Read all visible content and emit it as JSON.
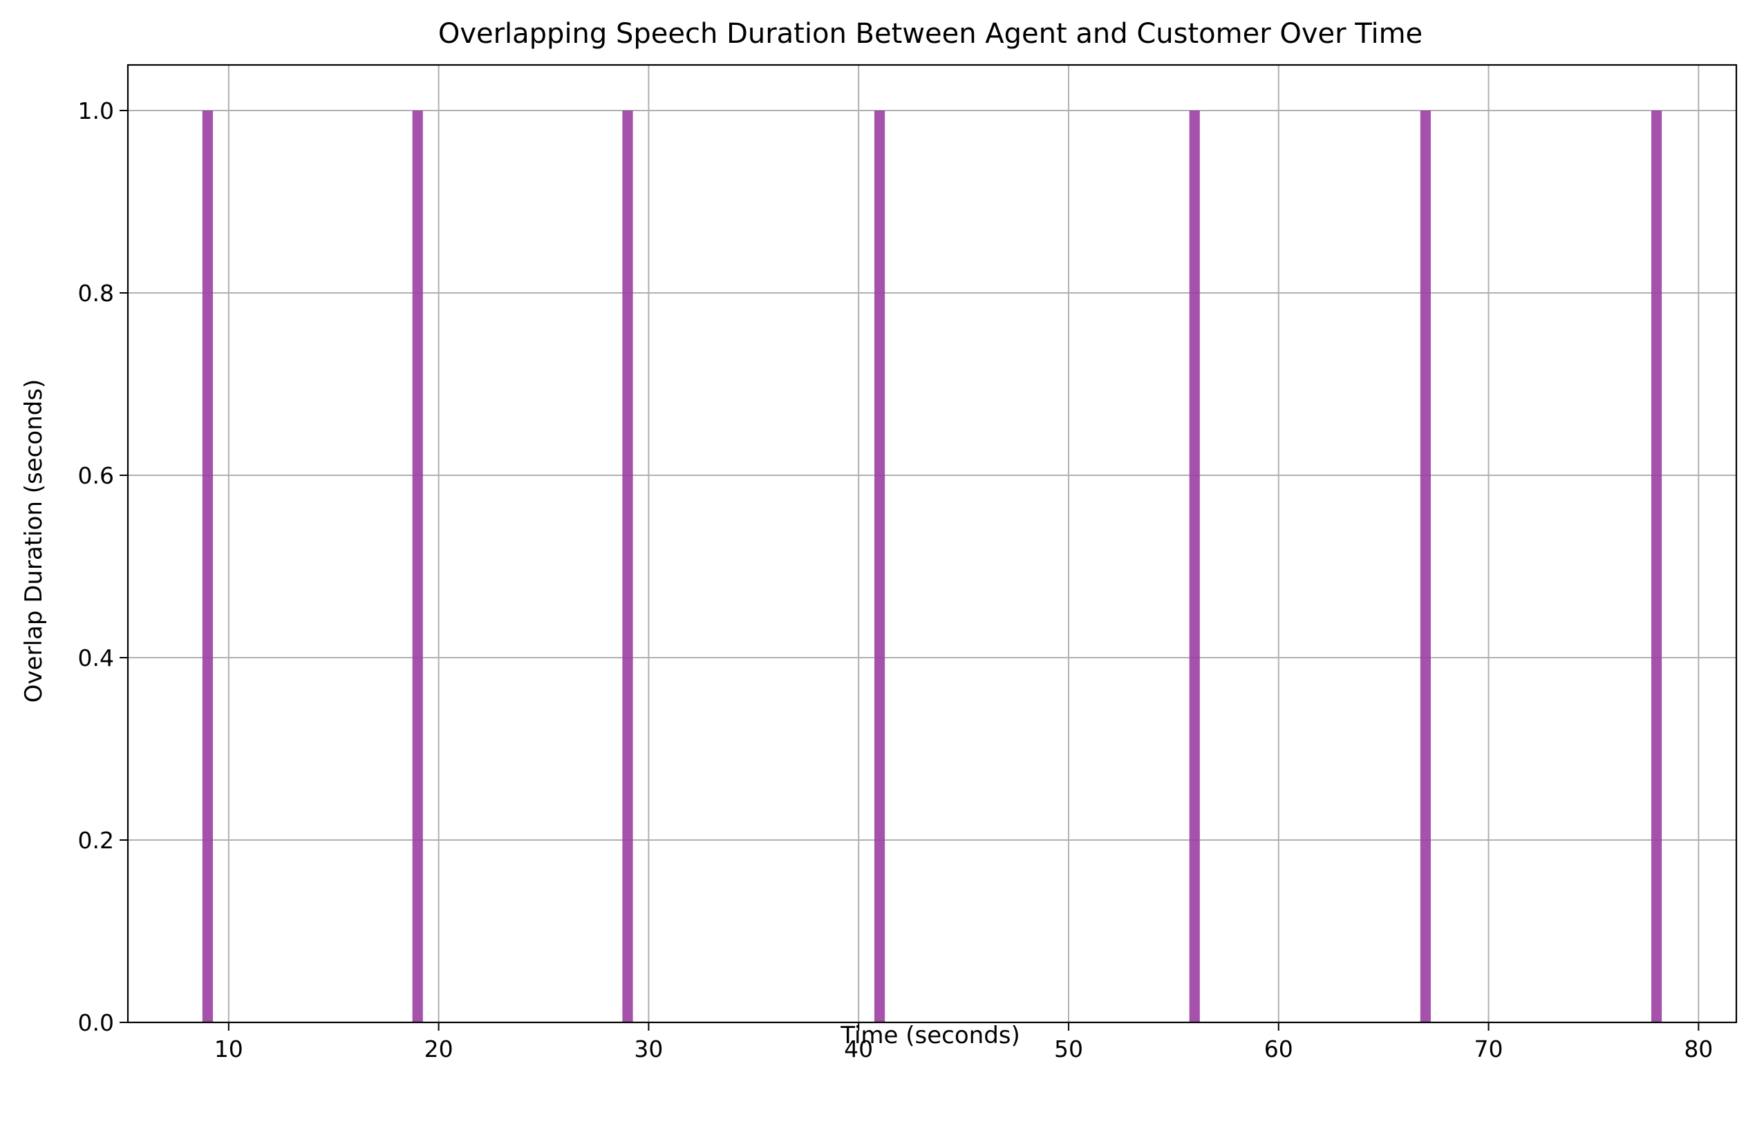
{
  "chart_data": {
    "type": "bar",
    "title": "Overlapping Speech Duration Between Agent and Customer Over Time",
    "xlabel": "Time (seconds)",
    "ylabel": "Overlap Duration (seconds)",
    "x": [
      9,
      19,
      29,
      41,
      56,
      67,
      78
    ],
    "values": [
      1.0,
      1.0,
      1.0,
      1.0,
      1.0,
      1.0,
      1.0
    ],
    "bar_width": 0.5,
    "xlim": [
      5.2,
      81.8
    ],
    "ylim": [
      0,
      1.05
    ],
    "xticks": [
      10,
      20,
      30,
      40,
      50,
      60,
      70,
      80
    ],
    "yticks": [
      0.0,
      0.2,
      0.4,
      0.6,
      0.8,
      1.0
    ],
    "grid": true,
    "bar_color": "#9c3fa3",
    "bar_alpha": 0.9
  }
}
